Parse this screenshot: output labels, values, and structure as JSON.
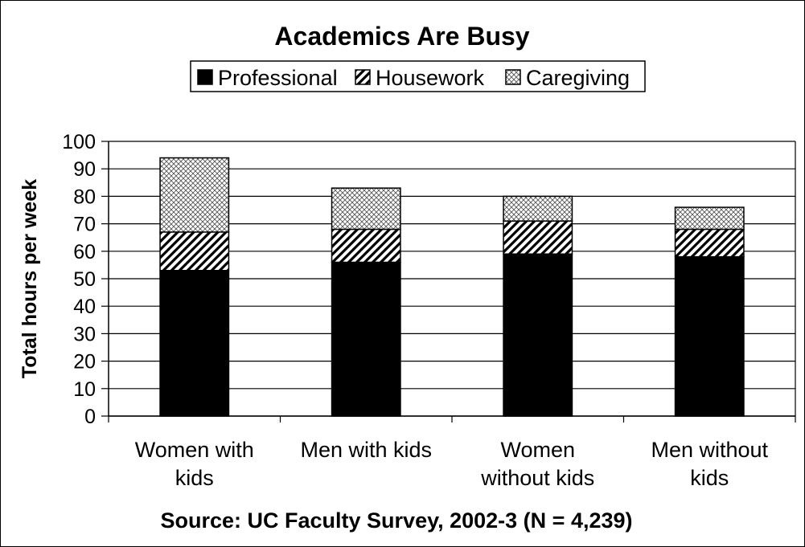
{
  "chart_data": {
    "type": "bar",
    "stacked": true,
    "title": "Academics Are Busy",
    "ylabel": "Total hours per week",
    "xlabel": "",
    "ylim": [
      0,
      100
    ],
    "yticks": [
      0,
      10,
      20,
      30,
      40,
      50,
      60,
      70,
      80,
      90,
      100
    ],
    "categories": [
      [
        "Women with",
        "kids"
      ],
      [
        "Men with kids"
      ],
      [
        "Women",
        "without kids"
      ],
      [
        "Men without",
        "kids"
      ]
    ],
    "series": [
      {
        "name": "Professional",
        "pattern": "solid",
        "values": [
          53,
          56,
          59,
          58
        ]
      },
      {
        "name": "Housework",
        "pattern": "diagonal-hatch",
        "values": [
          14,
          12,
          12,
          10
        ]
      },
      {
        "name": "Caregiving",
        "pattern": "crosshatch-dots",
        "values": [
          27,
          15,
          9,
          8
        ]
      }
    ],
    "legend_position": "top",
    "grid": "horizontal",
    "source": "Source: UC Faculty Survey, 2002-3 (N = 4,239)",
    "colors": {
      "ink": "#000000",
      "background": "#ffffff"
    }
  }
}
